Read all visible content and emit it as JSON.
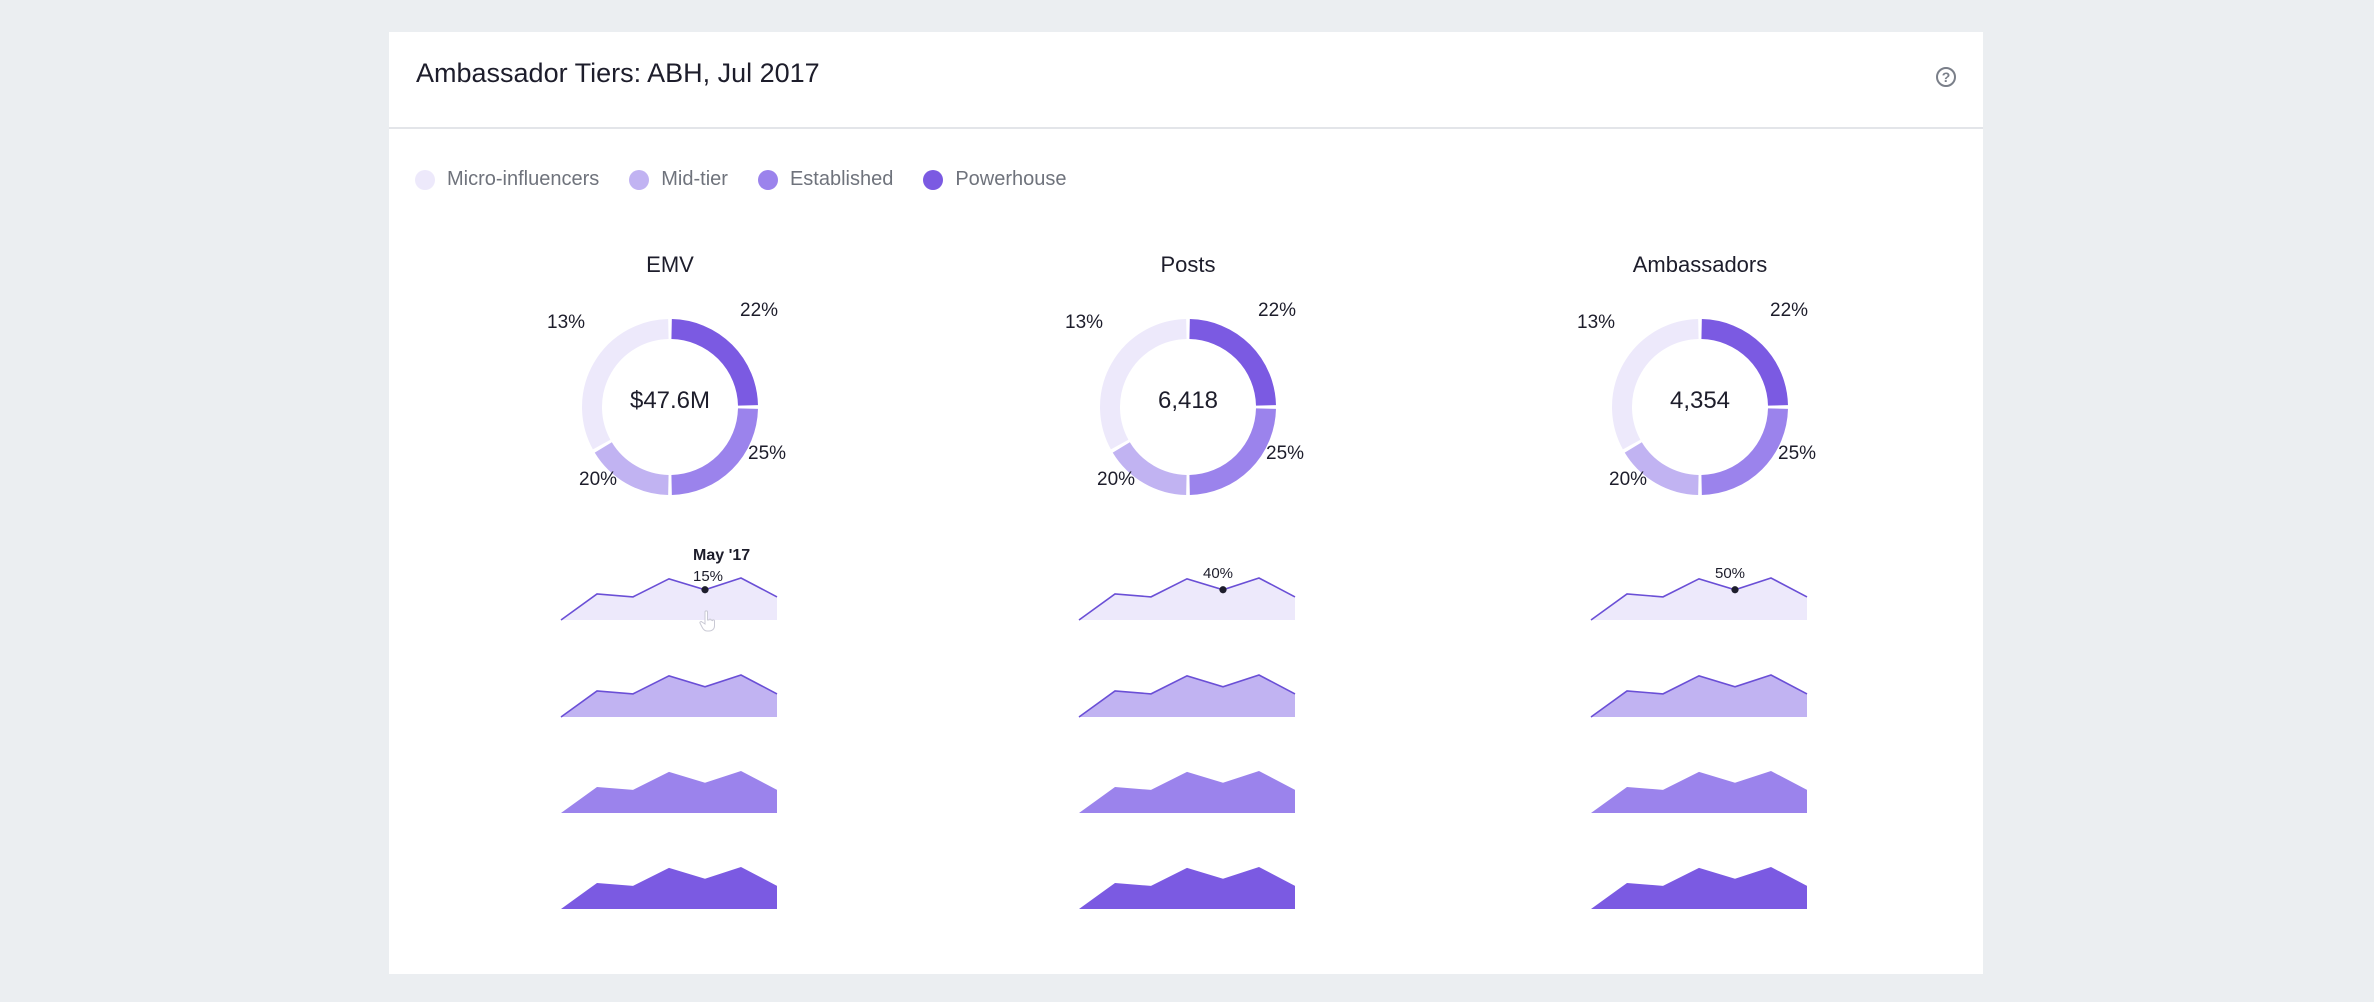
{
  "header": {
    "title": "Ambassador Tiers: ABH, Jul 2017",
    "help_icon": "question-circle-icon"
  },
  "legend": [
    {
      "label": "Micro-influencers",
      "color": "#ede9fb"
    },
    {
      "label": "Mid-tier",
      "color": "#c1b3f2"
    },
    {
      "label": "Established",
      "color": "#9b83ec"
    },
    {
      "label": "Powerhouse",
      "color": "#7b5ae2"
    }
  ],
  "panels": [
    {
      "title": "EMV",
      "total": "$47.6M",
      "tooltip": {
        "month": "May '17",
        "value": "15%"
      },
      "donut": {
        "Powerhouse": "22%",
        "Established": "25%",
        "Mid-tier": "20%",
        "Micro-influencers": "13%"
      }
    },
    {
      "title": "Posts",
      "total": "6,418",
      "tooltip": {
        "month": "",
        "value": "40%"
      },
      "donut": {
        "Powerhouse": "22%",
        "Established": "25%",
        "Mid-tier": "20%",
        "Micro-influencers": "13%"
      }
    },
    {
      "title": "Ambassadors",
      "total": "4,354",
      "tooltip": {
        "month": "",
        "value": "50%"
      },
      "donut": {
        "Powerhouse": "22%",
        "Established": "25%",
        "Mid-tier": "20%",
        "Micro-influencers": "13%"
      }
    }
  ],
  "chart_data": {
    "type": "area",
    "series_names": [
      "Micro-influencers",
      "Mid-tier",
      "Established",
      "Powerhouse"
    ],
    "sparkline_shape": [
      0,
      0.62,
      0.55,
      0.98,
      0.72,
      1.0,
      0.55
    ],
    "highlight_index": 4,
    "donut_slices": [
      {
        "name": "Powerhouse",
        "pct": 22
      },
      {
        "name": "Established",
        "pct": 25
      },
      {
        "name": "Mid-tier",
        "pct": 20
      },
      {
        "name": "Micro-influencers",
        "pct": 13
      }
    ]
  }
}
